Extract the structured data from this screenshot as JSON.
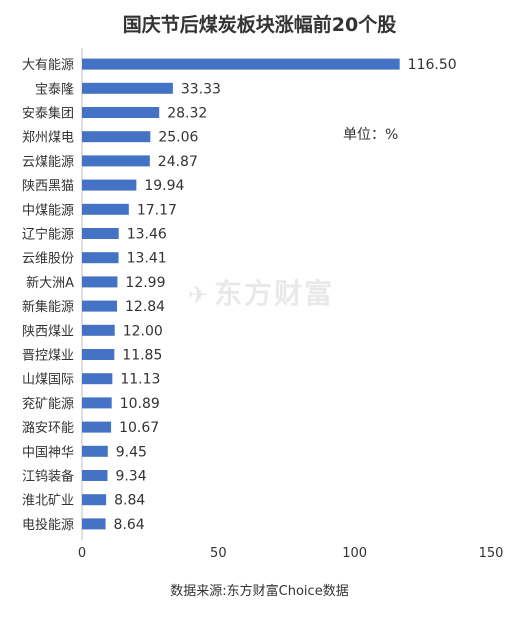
{
  "chart_data": {
    "type": "bar",
    "orientation": "horizontal",
    "title": "国庆节后煤炭板块涨幅前20个股",
    "unit_label": "单位：%",
    "source": "数据来源:东方财富Choice数据",
    "watermark": "东方财富",
    "categories": [
      "大有能源",
      "宝泰隆",
      "安泰集团",
      "郑州煤电",
      "云煤能源",
      "陕西黑猫",
      "中煤能源",
      "辽宁能源",
      "云维股份",
      "新大洲A",
      "新集能源",
      "陕西煤业",
      "晋控煤业",
      "山煤国际",
      "兖矿能源",
      "潞安环能",
      "中国神华",
      "江钨装备",
      "淮北矿业",
      "电投能源"
    ],
    "values": [
      116.5,
      33.33,
      28.32,
      25.06,
      24.87,
      19.94,
      17.17,
      13.46,
      13.41,
      12.99,
      12.84,
      12.0,
      11.85,
      11.13,
      10.89,
      10.67,
      9.45,
      9.34,
      8.84,
      8.64
    ],
    "value_labels": [
      "116.50",
      "33.33",
      "28.32",
      "25.06",
      "24.87",
      "19.94",
      "17.17",
      "13.46",
      "13.41",
      "12.99",
      "12.84",
      "12.00",
      "11.85",
      "11.13",
      "10.89",
      "10.67",
      "9.45",
      "9.34",
      "8.84",
      "8.64"
    ],
    "xlim": [
      0,
      150
    ],
    "xticks": [
      0,
      50,
      100,
      150
    ],
    "xtick_labels": [
      "0",
      "50",
      "100",
      "150"
    ],
    "bar_color": "#4472c4",
    "grid": false,
    "legend": "none"
  }
}
